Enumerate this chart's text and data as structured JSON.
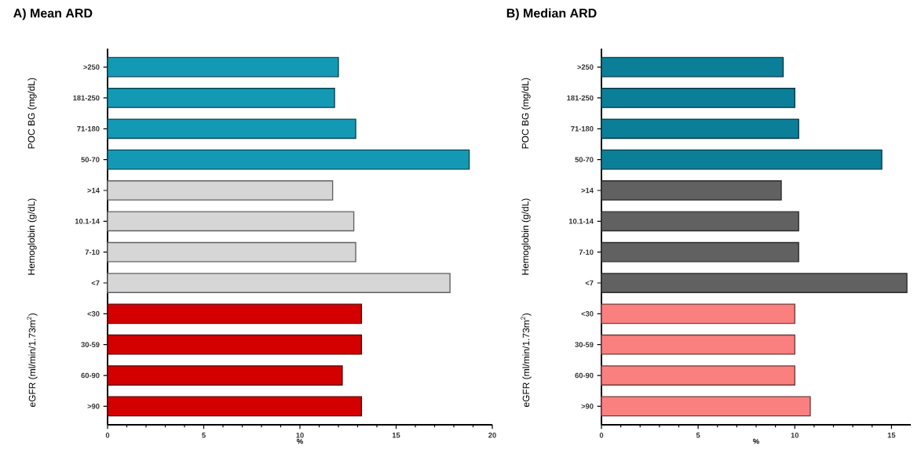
{
  "chart_data": [
    {
      "type": "bar",
      "orientation": "horizontal",
      "title": "A) Mean ARD",
      "xlabel": "%",
      "categories": [
        ">250",
        "181-250",
        "71-180",
        "50-70",
        ">14",
        "10.1-14",
        "7-10",
        "<7",
        "<30",
        "30-59",
        "60-90",
        ">90"
      ],
      "values": [
        12.0,
        11.8,
        12.9,
        18.8,
        11.7,
        12.8,
        12.9,
        17.8,
        13.2,
        13.2,
        12.2,
        13.2
      ],
      "colors": [
        "#1499b4",
        "#1499b4",
        "#1499b4",
        "#1499b4",
        "#d6d6d6",
        "#d6d6d6",
        "#d6d6d6",
        "#d6d6d6",
        "#d40000",
        "#d40000",
        "#d40000",
        "#d40000"
      ],
      "xlim": [
        0,
        20
      ],
      "xticks": [
        0,
        5,
        10,
        15,
        20
      ],
      "annotations": [
        "POC BG (mg/dL)",
        "Hemoglobin (g/dL)",
        "eGFR (ml/min/1.73m$^{2}$)"
      ]
    },
    {
      "type": "bar",
      "orientation": "horizontal",
      "title": "B) Median ARD",
      "xlabel": "%",
      "categories": [
        ">250",
        "181-250",
        "71-180",
        "50-70",
        ">14",
        "10.1-14",
        "7-10",
        "<7",
        "<30",
        "30-59",
        "60-90",
        ">90"
      ],
      "values": [
        9.4,
        10.0,
        10.2,
        14.5,
        9.3,
        10.2,
        10.2,
        15.8,
        10.0,
        10.0,
        10.0,
        10.8
      ],
      "colors": [
        "#0b7f98",
        "#0b7f98",
        "#0b7f98",
        "#0b7f98",
        "#616161",
        "#616161",
        "#616161",
        "#616161",
        "#fa8080",
        "#fa8080",
        "#fa8080",
        "#fa8080"
      ],
      "xlim": [
        0,
        16
      ],
      "xticks": [
        0,
        5,
        10,
        15
      ],
      "annotations": [
        "POC BG (mg/dL)",
        "Hemoglobin (g/dL)",
        "eGFR (ml/min/1.73m$^{2}$)"
      ]
    }
  ]
}
